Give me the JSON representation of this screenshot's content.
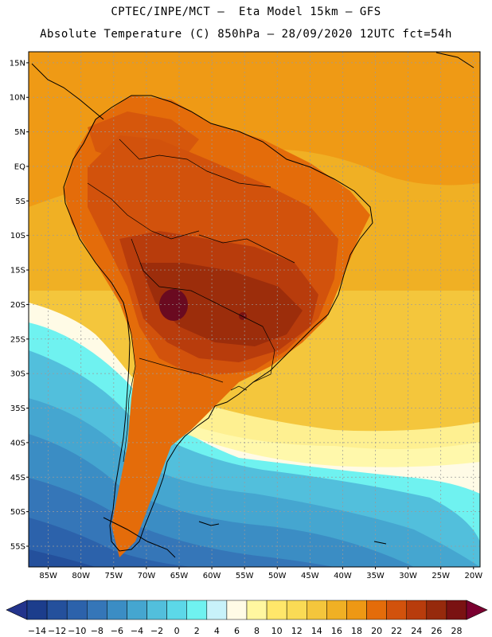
{
  "header": {
    "line1": "CPTEC/INPE/MCT –  Eta Model 15km – GFS",
    "line2": "Absolute Temperature (C) 850hPa – 28/09/2020 12UTC fct=54h"
  },
  "map": {
    "lat_ticks": [
      "15N",
      "10N",
      "5N",
      "EQ",
      "5S",
      "10S",
      "15S",
      "20S",
      "25S",
      "30S",
      "35S",
      "40S",
      "45S",
      "50S",
      "55S"
    ],
    "lon_ticks": [
      "85W",
      "80W",
      "75W",
      "70W",
      "65W",
      "60W",
      "55W",
      "50W",
      "45W",
      "40W",
      "35W",
      "30W",
      "25W",
      "20W"
    ],
    "lat_values": [
      15,
      10,
      5,
      0,
      -5,
      -10,
      -15,
      -20,
      -25,
      -30,
      -35,
      -40,
      -45,
      -50,
      -55
    ],
    "lon_values": [
      -85,
      -80,
      -75,
      -70,
      -65,
      -60,
      -55,
      -50,
      -45,
      -40,
      -35,
      -30,
      -25,
      -20
    ]
  },
  "colorbar": {
    "labels": [
      "−14",
      "−12",
      "−10",
      "−8",
      "−6",
      "−4",
      "−2",
      "0",
      "2",
      "4",
      "6",
      "8",
      "10",
      "12",
      "14",
      "16",
      "18",
      "20",
      "22",
      "24",
      "26",
      "28"
    ],
    "colors": [
      "#1c3d8c",
      "#24509c",
      "#2c62ab",
      "#3576b8",
      "#3b8dc4",
      "#45a6d0",
      "#52bfdc",
      "#5cd8e8",
      "#6ff2f0",
      "#c8f2fa",
      "#fffbe6",
      "#fff7a0",
      "#ffe76a",
      "#fadb55",
      "#f4c63c",
      "#f0b024",
      "#ee9814",
      "#e46c0a",
      "#d2520c",
      "#b83c0c",
      "#962a0c",
      "#7a1212"
    ],
    "under_color": "#23348c",
    "over_color": "#7a0030"
  }
}
